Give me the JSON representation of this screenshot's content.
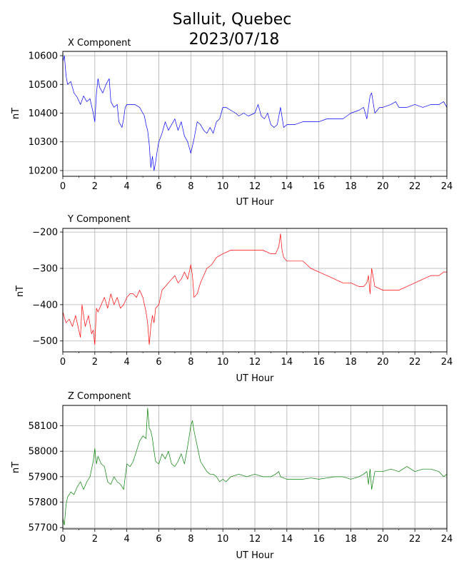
{
  "figure": {
    "title_line1": "Salluit, Quebec",
    "title_line2": "2023/07/18"
  },
  "chart_data": [
    {
      "type": "line",
      "title": "X Component",
      "xlabel": "UT Hour",
      "ylabel": "nT",
      "xlim": [
        0,
        24
      ],
      "ylim": [
        10180,
        10615
      ],
      "xticks": [
        0,
        2,
        4,
        6,
        8,
        10,
        12,
        14,
        16,
        18,
        20,
        22,
        24
      ],
      "yticks": [
        10200,
        10300,
        10400,
        10500,
        10600
      ],
      "grid": true,
      "color": "#0000ff",
      "x": [
        0,
        0.1,
        0.2,
        0.3,
        0.5,
        0.7,
        0.9,
        1.1,
        1.3,
        1.5,
        1.7,
        1.9,
        2.0,
        2.1,
        2.2,
        2.3,
        2.5,
        2.7,
        2.9,
        3.0,
        3.2,
        3.4,
        3.5,
        3.6,
        3.7,
        3.8,
        3.9,
        4.0,
        4.2,
        4.5,
        4.8,
        5.0,
        5.1,
        5.2,
        5.3,
        5.4,
        5.5,
        5.6,
        5.7,
        5.8,
        5.9,
        6.0,
        6.2,
        6.4,
        6.6,
        6.8,
        7.0,
        7.2,
        7.4,
        7.6,
        7.8,
        8.0,
        8.2,
        8.4,
        8.6,
        8.8,
        9.0,
        9.2,
        9.4,
        9.6,
        9.8,
        10.0,
        10.2,
        10.5,
        10.8,
        11.0,
        11.3,
        11.6,
        12.0,
        12.2,
        12.4,
        12.6,
        12.8,
        13.0,
        13.2,
        13.4,
        13.6,
        13.8,
        14.0,
        14.5,
        15.0,
        15.5,
        16.0,
        16.5,
        17.0,
        17.5,
        18.0,
        18.5,
        18.8,
        19.0,
        19.2,
        19.3,
        19.5,
        19.8,
        20.0,
        20.5,
        20.8,
        21.0,
        21.5,
        22.0,
        22.5,
        23.0,
        23.5,
        23.8,
        24.0
      ],
      "y": [
        10580,
        10600,
        10530,
        10500,
        10510,
        10470,
        10455,
        10430,
        10460,
        10440,
        10450,
        10400,
        10370,
        10470,
        10520,
        10490,
        10470,
        10500,
        10520,
        10440,
        10420,
        10430,
        10370,
        10360,
        10350,
        10380,
        10420,
        10430,
        10430,
        10430,
        10420,
        10400,
        10390,
        10360,
        10340,
        10290,
        10210,
        10250,
        10200,
        10230,
        10270,
        10300,
        10330,
        10370,
        10340,
        10360,
        10380,
        10340,
        10370,
        10320,
        10300,
        10260,
        10310,
        10370,
        10360,
        10340,
        10330,
        10350,
        10330,
        10370,
        10380,
        10420,
        10420,
        10410,
        10400,
        10390,
        10400,
        10390,
        10400,
        10430,
        10390,
        10380,
        10400,
        10360,
        10350,
        10360,
        10420,
        10350,
        10360,
        10360,
        10370,
        10370,
        10370,
        10380,
        10380,
        10380,
        10400,
        10410,
        10420,
        10380,
        10460,
        10470,
        10400,
        10420,
        10420,
        10430,
        10440,
        10420,
        10420,
        10430,
        10420,
        10430,
        10430,
        10440,
        10420
      ]
    },
    {
      "type": "line",
      "title": "Y Component",
      "xlabel": "UT Hour",
      "ylabel": "nT",
      "xlim": [
        0,
        24
      ],
      "ylim": [
        -530,
        -190
      ],
      "xticks": [
        0,
        2,
        4,
        6,
        8,
        10,
        12,
        14,
        16,
        18,
        20,
        22,
        24
      ],
      "yticks": [
        -500,
        -400,
        -300,
        -200
      ],
      "grid": true,
      "color": "#ff0000",
      "x": [
        0,
        0.2,
        0.4,
        0.6,
        0.8,
        1.0,
        1.1,
        1.2,
        1.4,
        1.6,
        1.8,
        1.9,
        2.0,
        2.1,
        2.2,
        2.4,
        2.6,
        2.8,
        3.0,
        3.2,
        3.4,
        3.6,
        3.8,
        4.0,
        4.2,
        4.4,
        4.6,
        4.8,
        5.0,
        5.2,
        5.3,
        5.4,
        5.5,
        5.6,
        5.7,
        5.8,
        6.0,
        6.2,
        6.4,
        6.6,
        6.8,
        7.0,
        7.2,
        7.4,
        7.6,
        7.8,
        8.0,
        8.1,
        8.2,
        8.4,
        8.6,
        8.8,
        9.0,
        9.3,
        9.6,
        10.0,
        10.5,
        11.0,
        11.5,
        12.0,
        12.5,
        13.0,
        13.3,
        13.5,
        13.6,
        13.7,
        13.8,
        14.0,
        14.5,
        15.0,
        15.5,
        16.0,
        16.5,
        17.0,
        17.5,
        18.0,
        18.5,
        18.8,
        19.0,
        19.1,
        19.2,
        19.3,
        19.5,
        20.0,
        20.5,
        21.0,
        21.5,
        22.0,
        22.5,
        23.0,
        23.5,
        23.8,
        24.0
      ],
      "y": [
        -420,
        -450,
        -440,
        -460,
        -430,
        -470,
        -490,
        -400,
        -460,
        -430,
        -480,
        -470,
        -510,
        -410,
        -420,
        -400,
        -380,
        -410,
        -370,
        -400,
        -380,
        -410,
        -400,
        -380,
        -370,
        -370,
        -380,
        -360,
        -380,
        -420,
        -450,
        -510,
        -460,
        -430,
        -450,
        -410,
        -400,
        -360,
        -350,
        -340,
        -330,
        -320,
        -340,
        -330,
        -310,
        -330,
        -290,
        -320,
        -380,
        -370,
        -340,
        -320,
        -300,
        -290,
        -270,
        -260,
        -250,
        -250,
        -250,
        -250,
        -250,
        -260,
        -260,
        -240,
        -205,
        -250,
        -270,
        -280,
        -280,
        -280,
        -300,
        -310,
        -320,
        -330,
        -340,
        -340,
        -350,
        -350,
        -340,
        -320,
        -370,
        -300,
        -350,
        -360,
        -360,
        -360,
        -350,
        -340,
        -330,
        -320,
        -320,
        -310,
        -310
      ]
    },
    {
      "type": "line",
      "title": "Z Component",
      "xlabel": "UT Hour",
      "ylabel": "nT",
      "xlim": [
        0,
        24
      ],
      "ylim": [
        57695,
        58180
      ],
      "xticks": [
        0,
        2,
        4,
        6,
        8,
        10,
        12,
        14,
        16,
        18,
        20,
        22,
        24
      ],
      "yticks": [
        57700,
        57800,
        57900,
        58000,
        58100
      ],
      "grid": true,
      "color": "#008000",
      "x": [
        0,
        0.05,
        0.1,
        0.2,
        0.3,
        0.5,
        0.7,
        0.9,
        1.1,
        1.3,
        1.5,
        1.7,
        1.8,
        1.9,
        2.0,
        2.1,
        2.2,
        2.4,
        2.6,
        2.8,
        3.0,
        3.2,
        3.4,
        3.6,
        3.8,
        4.0,
        4.2,
        4.4,
        4.6,
        4.8,
        5.0,
        5.2,
        5.3,
        5.4,
        5.5,
        5.6,
        5.7,
        5.8,
        6.0,
        6.2,
        6.4,
        6.6,
        6.8,
        7.0,
        7.2,
        7.4,
        7.6,
        7.8,
        8.0,
        8.1,
        8.2,
        8.4,
        8.6,
        8.8,
        9.0,
        9.2,
        9.4,
        9.6,
        9.8,
        10.0,
        10.2,
        10.5,
        11.0,
        11.5,
        12.0,
        12.5,
        13.0,
        13.3,
        13.5,
        13.6,
        13.8,
        14.0,
        14.5,
        15.0,
        15.5,
        16.0,
        16.5,
        17.0,
        17.5,
        18.0,
        18.5,
        18.8,
        19.0,
        19.1,
        19.2,
        19.3,
        19.5,
        20.0,
        20.5,
        21.0,
        21.5,
        22.0,
        22.5,
        23.0,
        23.5,
        23.8,
        24.0
      ],
      "y": [
        57740,
        57720,
        57710,
        57790,
        57820,
        57840,
        57830,
        57860,
        57880,
        57850,
        57880,
        57900,
        57930,
        57960,
        58010,
        57950,
        57980,
        57950,
        57940,
        57880,
        57870,
        57900,
        57880,
        57870,
        57850,
        57950,
        57940,
        57960,
        58000,
        58040,
        58060,
        58050,
        58170,
        58090,
        58080,
        58050,
        58000,
        57960,
        57950,
        57990,
        57970,
        58000,
        57950,
        57940,
        57960,
        57990,
        57950,
        58020,
        58100,
        58120,
        58080,
        58020,
        57960,
        57940,
        57920,
        57910,
        57910,
        57900,
        57880,
        57890,
        57880,
        57900,
        57910,
        57900,
        57910,
        57900,
        57900,
        57910,
        57920,
        57900,
        57895,
        57890,
        57890,
        57890,
        57895,
        57890,
        57895,
        57900,
        57900,
        57890,
        57900,
        57910,
        57920,
        57870,
        57930,
        57850,
        57920,
        57920,
        57930,
        57920,
        57940,
        57920,
        57930,
        57930,
        57920,
        57900,
        57910
      ]
    }
  ]
}
